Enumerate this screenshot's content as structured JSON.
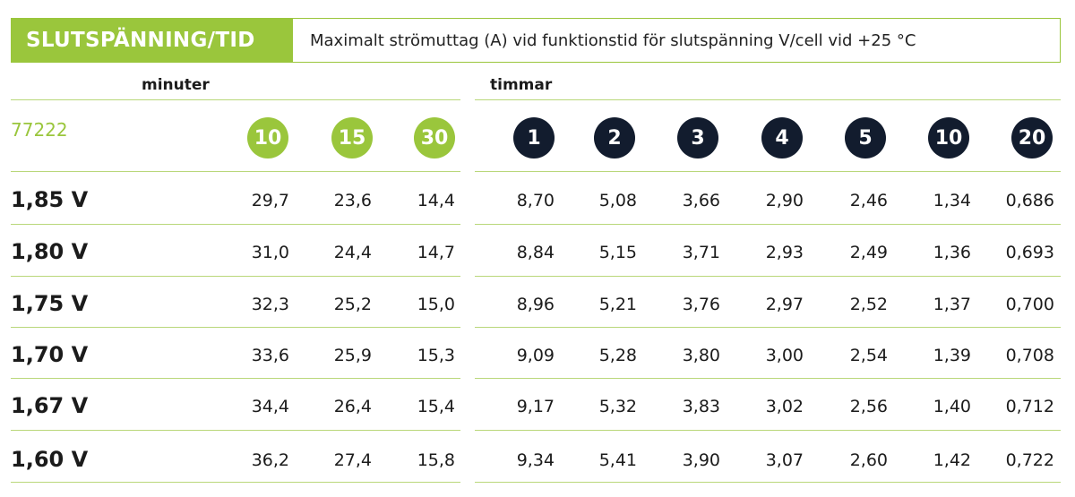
{
  "header": {
    "title": "SLUTSPÄNNING/TID",
    "subtitle": "Maximalt strömuttag (A) vid funktionstid för slutspänning V/cell vid +25 °C"
  },
  "groups": {
    "minutes_label": "minuter",
    "hours_label": "timmar"
  },
  "model": "77222",
  "minute_columns": [
    "10",
    "15",
    "30"
  ],
  "hour_columns": [
    "1",
    "2",
    "3",
    "4",
    "5",
    "10",
    "20"
  ],
  "colors": {
    "green": "#9ac63c",
    "navy": "#121c2e",
    "rule": "#b9d77a"
  },
  "rows": [
    {
      "label": "1,85 V",
      "values": [
        "29,7",
        "23,6",
        "14,4",
        "8,70",
        "5,08",
        "3,66",
        "2,90",
        "2,46",
        "1,34",
        "0,686"
      ]
    },
    {
      "label": "1,80 V",
      "values": [
        "31,0",
        "24,4",
        "14,7",
        "8,84",
        "5,15",
        "3,71",
        "2,93",
        "2,49",
        "1,36",
        "0,693"
      ]
    },
    {
      "label": "1,75 V",
      "values": [
        "32,3",
        "25,2",
        "15,0",
        "8,96",
        "5,21",
        "3,76",
        "2,97",
        "2,52",
        "1,37",
        "0,700"
      ]
    },
    {
      "label": "1,70 V",
      "values": [
        "33,6",
        "25,9",
        "15,3",
        "9,09",
        "5,28",
        "3,80",
        "3,00",
        "2,54",
        "1,39",
        "0,708"
      ]
    },
    {
      "label": "1,67 V",
      "values": [
        "34,4",
        "26,4",
        "15,4",
        "9,17",
        "5,32",
        "3,83",
        "3,02",
        "2,56",
        "1,40",
        "0,712"
      ]
    },
    {
      "label": "1,60 V",
      "values": [
        "36,2",
        "27,4",
        "15,8",
        "9,34",
        "5,41",
        "3,90",
        "3,07",
        "2,60",
        "1,42",
        "0,722"
      ]
    }
  ]
}
